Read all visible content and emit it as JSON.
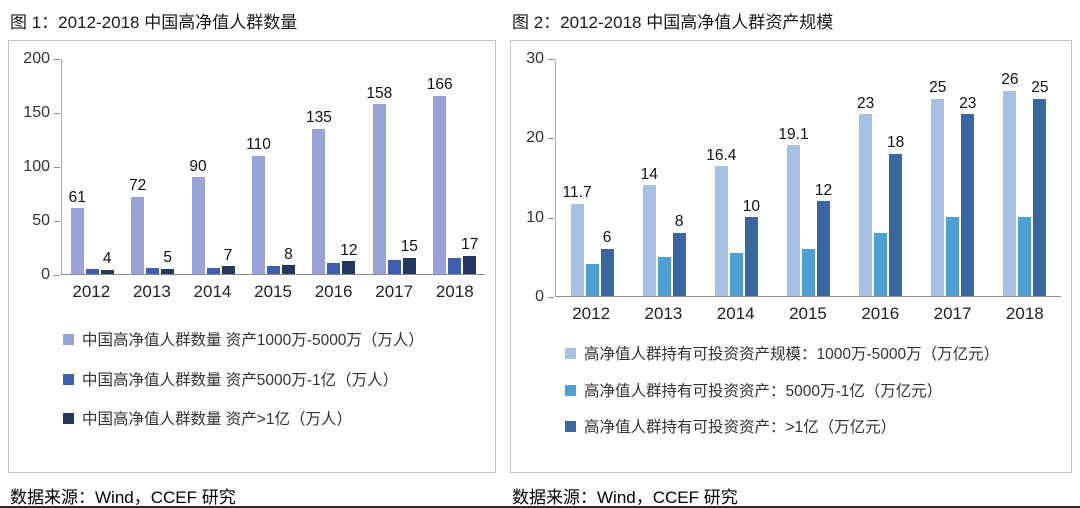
{
  "page": {
    "background": "#ffffff",
    "divider_color": "#2b2b2b"
  },
  "chart_data": [
    {
      "type": "bar",
      "title": "图 1：2012-2018 中国高净值人群数量",
      "categories": [
        "2012",
        "2013",
        "2014",
        "2015",
        "2016",
        "2017",
        "2018"
      ],
      "ylim": [
        0,
        200
      ],
      "yticks": [
        0,
        50,
        100,
        150,
        200
      ],
      "grid": false,
      "legend_position": "bottom-left",
      "series": [
        {
          "name": "中国高净值人群数量 资产1000万-5000万（万人）",
          "color": "#99A3D8",
          "values": [
            61,
            72,
            90,
            110,
            135,
            158,
            166
          ],
          "labels_shown": true
        },
        {
          "name": "中国高净值人群数量 资产5000万-1亿（万人）",
          "color": "#3F5EAE",
          "values": [
            5,
            6,
            6,
            7,
            10,
            13,
            15
          ],
          "labels_shown": false
        },
        {
          "name": "中国高净值人群数量 资产>1亿（万人）",
          "color": "#24375F",
          "values": [
            4,
            5,
            7,
            8,
            12,
            15,
            17
          ],
          "labels_shown": true
        }
      ],
      "source": "数据来源：Wind，CCEF 研究"
    },
    {
      "type": "bar",
      "title": "图 2：2012-2018 中国高净值人群资产规模",
      "categories": [
        "2012",
        "2013",
        "2014",
        "2015",
        "2016",
        "2017",
        "2018"
      ],
      "ylim": [
        0,
        30
      ],
      "yticks": [
        0,
        10,
        20,
        30
      ],
      "grid": false,
      "legend_position": "bottom-left",
      "series": [
        {
          "name": "高净值人群持有可投资资产规模：1000万-5000万（万亿元）",
          "color": "#A6C1E3",
          "values": [
            11.7,
            14,
            16.4,
            19.1,
            23,
            25,
            26
          ],
          "labels_shown": true
        },
        {
          "name": "高净值人群持有可投资资产：5000万-1亿（万亿元）",
          "color": "#4BA0D6",
          "values": [
            4,
            5,
            5.5,
            6,
            8,
            10,
            10
          ],
          "labels_shown": false
        },
        {
          "name": "高净值人群持有可投资资产：>1亿（万亿元）",
          "color": "#39679F",
          "values": [
            6,
            8,
            10,
            12,
            18,
            23,
            25
          ],
          "labels_shown": true
        }
      ],
      "source": "数据来源：Wind，CCEF 研究"
    }
  ]
}
